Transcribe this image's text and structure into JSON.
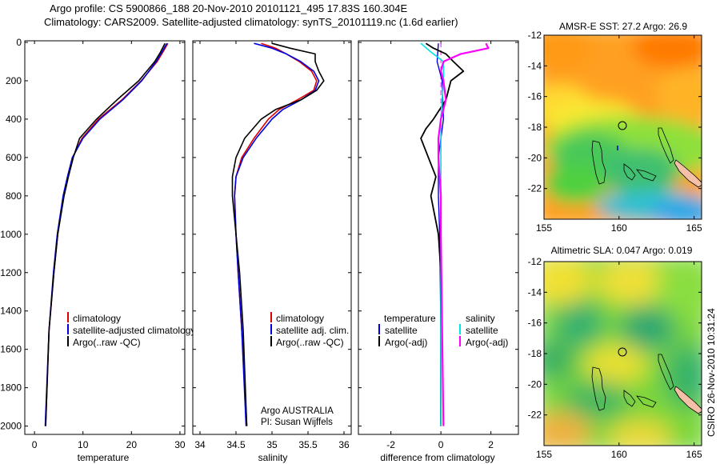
{
  "header": {
    "line1": "Argo profile: CS 5900866_188 20-Nov-2010 20101121_495 17.83S 160.304E",
    "line2": "Climatology: CARS2009. Satellite-adjusted climatology: synTS_20101119.nc (1.6d earlier)"
  },
  "side_text": "CSIRO 26-Nov-2010 10:31:24",
  "colors": {
    "climatology": "#dd0000",
    "satellite": "#0000dd",
    "argo": "#000000",
    "sal_satellite": "#00e5e5",
    "sal_argo": "#ff00ff"
  },
  "chart_data": [
    {
      "type": "line",
      "id": "temperature",
      "xlabel": "temperature",
      "ylabel": "",
      "xlim": [
        -2,
        31
      ],
      "ylim": [
        2060,
        0
      ],
      "xticks": [
        "0",
        "10",
        "20",
        "30"
      ],
      "yticks": [
        "0",
        "200",
        "400",
        "600",
        "800",
        "1000",
        "1200",
        "1400",
        "1600",
        "1800",
        "2000"
      ],
      "legend": [
        "climatology",
        "satellite-adjusted climatology",
        "Argo(..raw -QC)"
      ],
      "series": [
        {
          "name": "climatology",
          "depth": [
            5,
            50,
            100,
            200,
            300,
            400,
            500,
            600,
            700,
            800,
            1000,
            1200,
            1500,
            2000
          ],
          "values": [
            27.5,
            26.5,
            25.3,
            22.0,
            18.0,
            13.2,
            9.8,
            7.9,
            6.9,
            6.0,
            4.8,
            4.0,
            3.0,
            2.3
          ]
        },
        {
          "name": "satellite-adjusted climatology",
          "depth": [
            5,
            50,
            100,
            200,
            300,
            400,
            500,
            600,
            700,
            800,
            1000,
            1200,
            1500,
            2000
          ],
          "values": [
            27.3,
            26.3,
            25.1,
            22.1,
            18.2,
            13.5,
            10.0,
            7.8,
            6.8,
            5.9,
            4.7,
            3.9,
            3.0,
            2.2
          ]
        },
        {
          "name": "Argo(..raw -QC)",
          "depth": [
            5,
            50,
            100,
            200,
            300,
            400,
            500,
            600,
            700,
            800,
            1000,
            1200,
            1500,
            2000
          ],
          "values": [
            26.9,
            26.0,
            24.8,
            21.5,
            17.0,
            12.8,
            9.3,
            8.0,
            7.0,
            6.1,
            4.8,
            4.0,
            3.0,
            2.3
          ]
        }
      ]
    },
    {
      "type": "line",
      "id": "salinity",
      "xlabel": "salinity",
      "xlim": [
        33.9,
        36.1
      ],
      "ylim": [
        2060,
        0
      ],
      "xticks": [
        "34",
        "34.5",
        "35",
        "35.5",
        "36"
      ],
      "legend": [
        "climatology",
        "satellite adj. clim.",
        "Argo(..raw -QC)"
      ],
      "annotation": [
        "Argo AUSTRALIA",
        "PI: Susan Wijffels"
      ],
      "series": [
        {
          "name": "climatology",
          "depth": [
            5,
            30,
            60,
            100,
            150,
            200,
            250,
            300,
            350,
            400,
            500,
            600,
            700,
            800,
            1000,
            1200,
            1500,
            2000
          ],
          "values": [
            34.85,
            35.05,
            35.2,
            35.38,
            35.55,
            35.62,
            35.58,
            35.35,
            35.1,
            34.95,
            34.75,
            34.58,
            34.5,
            34.48,
            34.5,
            34.53,
            34.58,
            34.65
          ]
        },
        {
          "name": "satellite adj. clim.",
          "depth": [
            5,
            30,
            60,
            100,
            150,
            200,
            250,
            300,
            350,
            400,
            500,
            600,
            700,
            800,
            1000,
            1200,
            1500,
            2000
          ],
          "values": [
            34.75,
            35.0,
            35.2,
            35.4,
            35.58,
            35.65,
            35.6,
            35.4,
            35.15,
            35.0,
            34.78,
            34.6,
            34.5,
            34.48,
            34.5,
            34.53,
            34.58,
            34.64
          ]
        },
        {
          "name": "Argo(..raw -QC)",
          "depth": [
            5,
            30,
            60,
            100,
            150,
            200,
            250,
            300,
            350,
            400,
            500,
            600,
            700,
            800,
            1000,
            1200,
            1500,
            2000
          ],
          "values": [
            35.0,
            35.25,
            35.6,
            35.6,
            35.65,
            35.72,
            35.62,
            35.4,
            35.05,
            34.85,
            34.62,
            34.5,
            34.45,
            34.45,
            34.5,
            34.55,
            34.6,
            34.65
          ]
        }
      ]
    },
    {
      "type": "line",
      "id": "difference",
      "xlabel": "difference from climatology",
      "xlim": [
        -3.3,
        3.1
      ],
      "ylim": [
        2060,
        0
      ],
      "xticks": [
        "-2",
        "0",
        "2"
      ],
      "legend_titles": [
        "temperature",
        "salinity"
      ],
      "legend": [
        "satellite",
        "Argo(-adj)",
        "satellite",
        "Argo(-adj)"
      ],
      "series": [
        {
          "name": "temperature satellite",
          "depth": [
            5,
            100,
            200,
            400,
            600,
            800,
            1000,
            1500,
            2000
          ],
          "values": [
            -0.1,
            -0.15,
            0.05,
            0.1,
            -0.1,
            -0.1,
            -0.05,
            0.0,
            0.0
          ]
        },
        {
          "name": "temperature Argo(-adj)",
          "depth": [
            5,
            30,
            60,
            100,
            150,
            200,
            300,
            400,
            450,
            500,
            600,
            700,
            800,
            1000,
            1200,
            1500,
            2000
          ],
          "values": [
            -0.6,
            -0.3,
            0.2,
            0.5,
            0.9,
            0.4,
            0.2,
            -0.3,
            -0.6,
            -0.8,
            -0.5,
            -0.2,
            -0.4,
            -0.1,
            0.0,
            0.0,
            0.0
          ]
        },
        {
          "name": "salinity satellite",
          "depth": [
            5,
            50,
            100,
            200,
            400,
            600,
            800,
            1000,
            1500,
            2000
          ],
          "values": [
            -0.8,
            -0.4,
            0.1,
            0.1,
            0.0,
            0.0,
            0.0,
            0.0,
            0.0,
            0.0
          ]
        },
        {
          "name": "salinity Argo(-adj)",
          "depth": [
            5,
            30,
            60,
            100,
            150,
            200,
            300,
            400,
            500,
            600,
            800,
            1000,
            1500,
            2000
          ],
          "values": [
            1.8,
            1.9,
            0.8,
            0.1,
            0.0,
            0.1,
            0.2,
            0.0,
            -0.1,
            -0.1,
            0.0,
            0.0,
            0.05,
            0.1
          ]
        }
      ]
    },
    {
      "type": "heatmap",
      "id": "sst-map",
      "title": "AMSR-E SST: 27.2 Argo: 26.9",
      "xlim": [
        155,
        165.5
      ],
      "ylim": [
        -24,
        -12
      ],
      "xticks": [
        "155",
        "160",
        "165"
      ],
      "yticks": [
        "-12",
        "-14",
        "-16",
        "-18",
        "-20",
        "-22"
      ],
      "marker": {
        "lon": 160.3,
        "lat": -17.83
      }
    },
    {
      "type": "heatmap",
      "id": "sla-map",
      "title": "Altimetric SLA: 0.047 Argo: 0.019",
      "xlim": [
        155,
        165.5
      ],
      "ylim": [
        -24,
        -12
      ],
      "xticks": [
        "155",
        "160",
        "165"
      ],
      "yticks": [
        "-12",
        "-14",
        "-16",
        "-18",
        "-20",
        "-22"
      ],
      "marker": {
        "lon": 160.3,
        "lat": -17.83
      }
    }
  ]
}
